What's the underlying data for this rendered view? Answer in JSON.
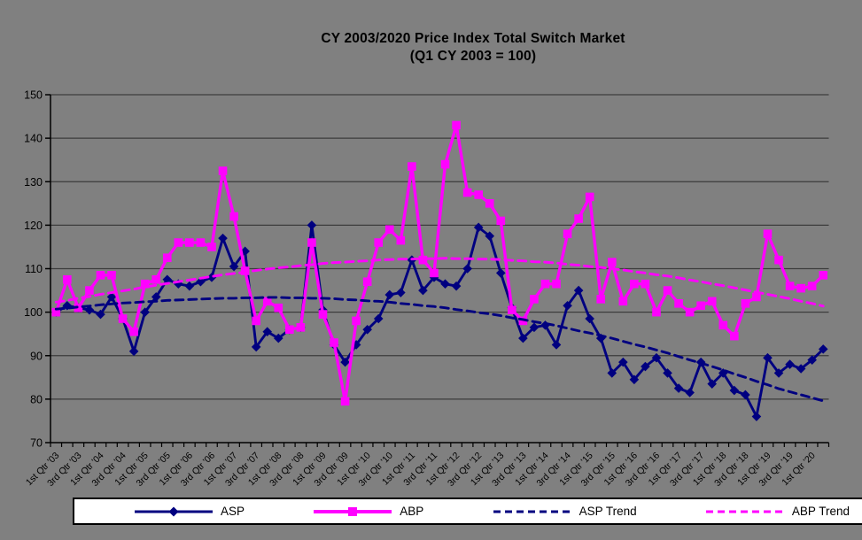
{
  "window": {
    "background_color": "#808080"
  },
  "title": {
    "line1": "CY 2003/2020 Price Index Total Switch Market",
    "line2": "(Q1 CY 2003 = 100)"
  },
  "colors": {
    "asp": "#000080",
    "abp": "#FF00FF",
    "grid": "#3c3c3c",
    "axis": "#000000",
    "legend_bg": "#ffffff"
  },
  "legend": {
    "items": [
      {
        "label": "ASP",
        "color": "#000080",
        "marker": "diamond",
        "style": "solid"
      },
      {
        "label": "ABP",
        "color": "#FF00FF",
        "marker": "square",
        "style": "solid"
      },
      {
        "label": "ASP Trend",
        "color": "#000080",
        "marker": "none",
        "style": "dashed"
      },
      {
        "label": "ABP Trend",
        "color": "#FF00FF",
        "marker": "none",
        "style": "dashed"
      }
    ]
  },
  "chart_data": {
    "type": "line",
    "title": "CY 2003/2020 Price Index Total Switch Market (Q1 CY 2003 = 100)",
    "x_unit": "quarter",
    "x_range": [
      "1st Qtr 2003",
      "2nd Qtr 2020"
    ],
    "n_points": 70,
    "ylim": [
      70,
      150
    ],
    "y_tick_interval": 10,
    "y_tick_labels": [
      150,
      140,
      130,
      120,
      110,
      100,
      90,
      80,
      70
    ],
    "grid": "horizontal",
    "legend_position": "bottom",
    "x_tick_labels": [
      "1st Qtr '03",
      "3rd Qtr '03",
      "1st Qtr '04",
      "3rd Qtr '04",
      "1st Qtr '05",
      "3rd Qtr '05",
      "1st Qtr '06",
      "3rd Qtr '06",
      "1st Qtr '07",
      "3rd Qtr '07",
      "1st Qtr '08",
      "3rd Qtr '08",
      "1st Qtr '09",
      "3rd Qtr '09",
      "1st Qtr '10",
      "3rd Qtr '10",
      "1st Qtr '11",
      "3rd Qtr '11",
      "1st Qtr '12",
      "3rd Qtr '12",
      "1st Qtr '13",
      "3rd Qtr '13",
      "1st Qtr '14",
      "3rd Qtr '14",
      "1st Qtr '15",
      "3rd Qtr '15",
      "1st Qtr '16",
      "3rd Qtr '16",
      "1st Qtr '17",
      "3rd Qtr '17",
      "1st Qtr '18",
      "3rd Qtr '18",
      "1st Qtr '19",
      "3rd Qtr '19",
      "1st Qtr '20"
    ],
    "series": [
      {
        "name": "ASP",
        "color": "#000080",
        "marker": "diamond",
        "line_style": "solid",
        "values": [
          100,
          101.5,
          101,
          100.5,
          99.5,
          103.5,
          98.5,
          91,
          100,
          103.5,
          107.5,
          106.5,
          106,
          107,
          108,
          117,
          110.5,
          114,
          92,
          95.5,
          94,
          96,
          96.5,
          120,
          100.5,
          92.5,
          88.5,
          92.5,
          96,
          98.5,
          104,
          104.5,
          112,
          105,
          108,
          106.5,
          106,
          110,
          119.5,
          117.5,
          109,
          101,
          94,
          96.5,
          97,
          92.5,
          101.5,
          105,
          98.5,
          94,
          86,
          88.5,
          84.5,
          87.5,
          89.5,
          86,
          82.5,
          81.5,
          88.5,
          83.5,
          86,
          82,
          81,
          76,
          89.5,
          86,
          88,
          87,
          89,
          91.5
        ]
      },
      {
        "name": "ABP",
        "color": "#FF00FF",
        "marker": "square",
        "line_style": "solid",
        "values": [
          100,
          107.5,
          101,
          105,
          108.5,
          108.5,
          98.5,
          95.5,
          106.5,
          107.5,
          112.5,
          116,
          116,
          116,
          115,
          132.5,
          122,
          109.5,
          98,
          102.5,
          101,
          96,
          96.5,
          116,
          99.5,
          93,
          79.5,
          98,
          107,
          116,
          119,
          116.5,
          133.5,
          112,
          109,
          134,
          143,
          127.5,
          127,
          125,
          121,
          100.5,
          98,
          103,
          106.5,
          106.5,
          118,
          121.5,
          126.5,
          103,
          111.5,
          102.5,
          106.5,
          106.5,
          100,
          105,
          102,
          100,
          101.5,
          102.5,
          97,
          94.5,
          102,
          103.5,
          118,
          112,
          106,
          105.5,
          106,
          108.5
        ]
      },
      {
        "name": "ASP Trend",
        "color": "#000080",
        "marker": "none",
        "line_style": "dashed",
        "values": [
          100.7,
          100.9,
          101.2,
          101.4,
          101.7,
          101.9,
          102.1,
          102.2,
          102.4,
          102.5,
          102.7,
          102.8,
          102.9,
          103.0,
          103.1,
          103.2,
          103.2,
          103.3,
          103.3,
          103.4,
          103.4,
          103.3,
          103.3,
          103.2,
          103.2,
          103.1,
          102.9,
          102.8,
          102.6,
          102.5,
          102.3,
          102.0,
          101.8,
          101.5,
          101.3,
          101.0,
          100.6,
          100.3,
          99.9,
          99.6,
          99.2,
          98.7,
          98.3,
          97.8,
          97.4,
          96.9,
          96.3,
          95.7,
          95.2,
          94.6,
          94.0,
          93.3,
          92.6,
          92.0,
          91.3,
          90.6,
          89.8,
          89.0,
          88.3,
          87.5,
          86.7,
          85.8,
          85.0,
          84.1,
          83.3,
          82.4,
          81.7,
          81.0,
          80.3,
          79.6
        ]
      },
      {
        "name": "ABP Trend",
        "color": "#FF00FF",
        "marker": "none",
        "line_style": "dashed",
        "values": [
          102.3,
          102.7,
          103.2,
          103.6,
          104.1,
          104.5,
          104.9,
          105.3,
          105.8,
          106.2,
          106.6,
          107.0,
          107.4,
          107.8,
          108.2,
          108.6,
          108.9,
          109.2,
          109.6,
          109.9,
          110.2,
          110.4,
          110.7,
          110.9,
          111.2,
          111.4,
          111.5,
          111.7,
          111.8,
          112.0,
          112.1,
          112.2,
          112.2,
          112.3,
          112.3,
          112.4,
          112.3,
          112.3,
          112.2,
          112.2,
          112.1,
          111.9,
          111.8,
          111.6,
          111.5,
          111.3,
          111.0,
          110.8,
          110.5,
          110.3,
          110.0,
          109.7,
          109.3,
          109.0,
          108.6,
          108.3,
          107.9,
          107.4,
          107.0,
          106.5,
          106.1,
          105.6,
          105.1,
          104.6,
          104.1,
          103.6,
          103.1,
          102.5,
          102.0,
          101.4
        ]
      }
    ]
  }
}
